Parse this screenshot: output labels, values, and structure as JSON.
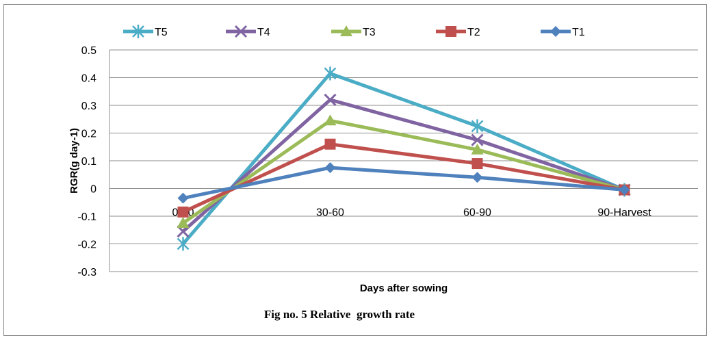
{
  "chart_data": {
    "type": "line",
    "caption": "Fig no. 5 Relative  growth rate",
    "xlabel": "Days after sowing",
    "ylabel": "RGR(g  day-1)",
    "categories": [
      "0-30",
      "30-60",
      "60-90",
      "90-Harvest"
    ],
    "ylim": [
      -0.3,
      0.5
    ],
    "yticks": [
      "0.5",
      "0.4",
      "0.3",
      "0.2",
      "0.1",
      "0",
      "-0.1",
      "-0.2",
      "-0.3"
    ],
    "grid": true,
    "legend_position": "top",
    "series": [
      {
        "name": "T5",
        "color": "#4bacc6",
        "marker": "star",
        "values": [
          -0.2,
          0.415,
          0.225,
          -0.005
        ]
      },
      {
        "name": "T4",
        "color": "#8064a2",
        "marker": "x",
        "values": [
          -0.155,
          0.32,
          0.175,
          -0.005
        ]
      },
      {
        "name": "T3",
        "color": "#9bbb59",
        "marker": "triangle",
        "values": [
          -0.125,
          0.245,
          0.14,
          -0.005
        ]
      },
      {
        "name": "T2",
        "color": "#c0504d",
        "marker": "square",
        "values": [
          -0.085,
          0.16,
          0.09,
          -0.005
        ]
      },
      {
        "name": "T1",
        "color": "#4f81bd",
        "marker": "diamond",
        "values": [
          -0.035,
          0.075,
          0.04,
          -0.005
        ]
      }
    ]
  }
}
